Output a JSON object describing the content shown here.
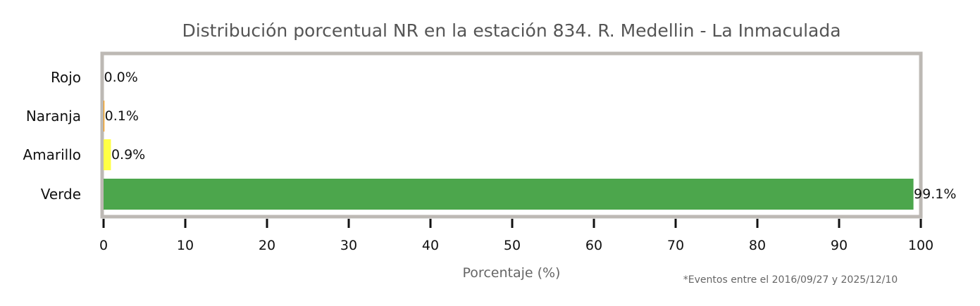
{
  "chart_data": {
    "type": "bar",
    "orientation": "horizontal",
    "title": "Distribución porcentual NR en la estación 834. R. Medellin - La Inmaculada",
    "xlabel": "Porcentaje (%)",
    "ylabel": "",
    "xlim": [
      0,
      100
    ],
    "xticks": [
      "0",
      "10",
      "20",
      "30",
      "40",
      "50",
      "60",
      "70",
      "80",
      "90",
      "100"
    ],
    "categories": [
      "Rojo",
      "Naranja",
      "Amarillo",
      "Verde"
    ],
    "values": [
      0.0,
      0.1,
      0.9,
      99.1
    ],
    "value_labels": [
      "0.0%",
      "0.1%",
      "0.9%",
      "99.1%"
    ],
    "colors": [
      "#e53935",
      "#ff9800",
      "#ffff44",
      "#4ca64c"
    ],
    "frame_color": "#bdb9b4",
    "grid": false,
    "legend": "none",
    "note": "*Eventos entre el 2016/09/27 y 2025/12/10"
  }
}
